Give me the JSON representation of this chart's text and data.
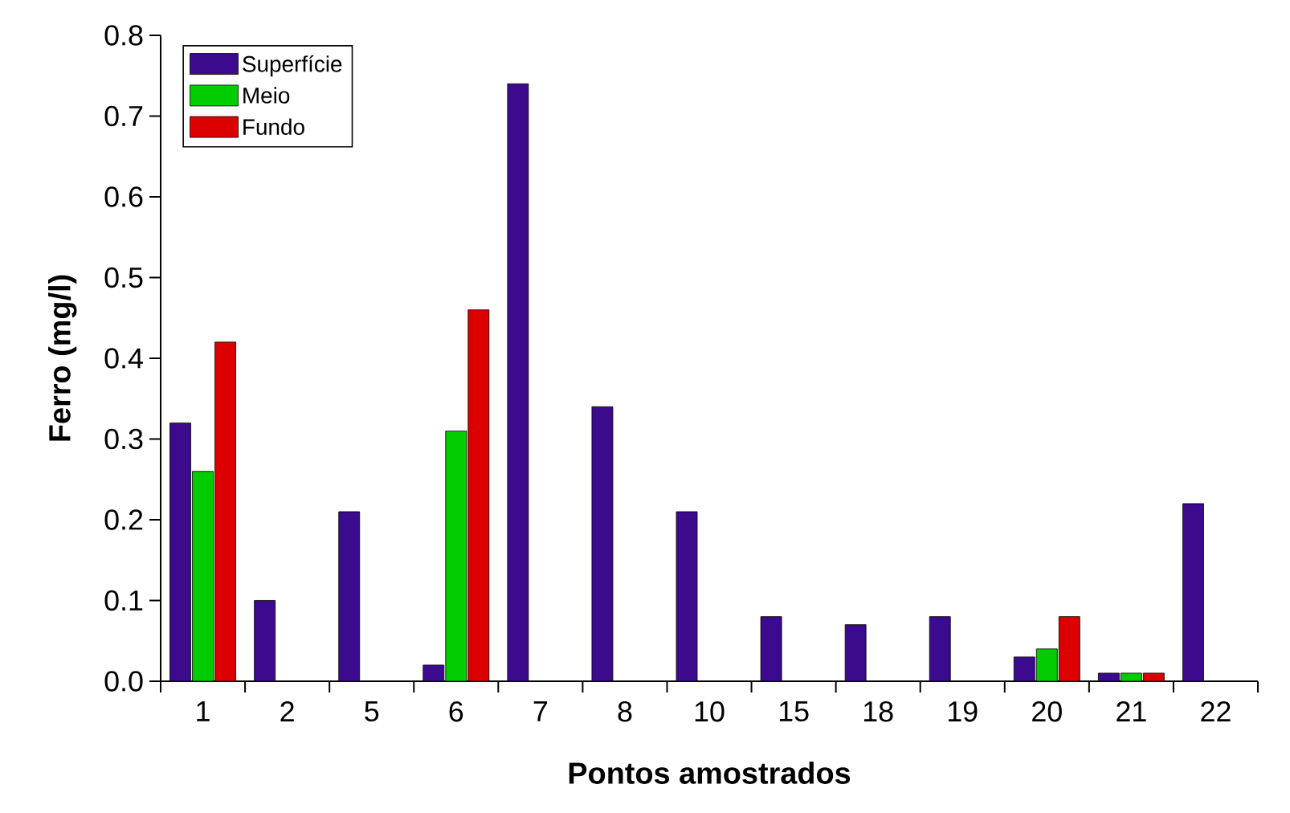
{
  "chart_data": {
    "type": "bar",
    "xlabel": "Pontos amostrados",
    "ylabel": "Ferro (mg/l)",
    "categories": [
      "1",
      "2",
      "5",
      "6",
      "7",
      "8",
      "10",
      "15",
      "18",
      "19",
      "20",
      "21",
      "22"
    ],
    "series": [
      {
        "name": "Superfície",
        "color": "#3c0a8c",
        "values": [
          0.32,
          0.1,
          0.21,
          0.02,
          0.74,
          0.34,
          0.21,
          0.08,
          0.07,
          0.08,
          0.03,
          0.01,
          0.22
        ]
      },
      {
        "name": "Meio",
        "color": "#00cc00",
        "values": [
          0.26,
          null,
          null,
          0.31,
          null,
          null,
          null,
          null,
          null,
          null,
          0.04,
          0.01,
          null
        ]
      },
      {
        "name": "Fundo",
        "color": "#dd0000",
        "values": [
          0.42,
          null,
          null,
          0.46,
          null,
          null,
          null,
          null,
          null,
          null,
          0.08,
          0.01,
          null
        ]
      }
    ],
    "ylim": [
      0,
      0.8
    ],
    "yticks": [
      {
        "value": 0,
        "label": "0.0"
      },
      0.1,
      0.2,
      0.3,
      0.4,
      0.5,
      0.6,
      0.7,
      0.8
    ],
    "grid": false,
    "legend": "top left"
  }
}
